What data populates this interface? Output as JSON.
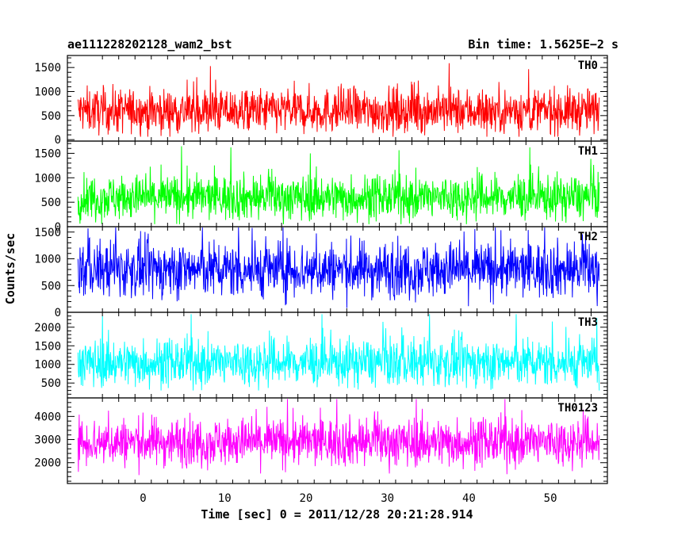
{
  "header": {
    "left_title": "ae111228202128_wam2_bst",
    "right_title": "Bin time: 1.5625E−2 s"
  },
  "chart_data": {
    "type": "line",
    "xlabel": "Time [sec] 0 = 2011/12/28 20:21:28.914",
    "ylabel": "Counts/sec",
    "xlim": [
      -9.3,
      57.0
    ],
    "x_range": [
      -8.0,
      56.0
    ],
    "x_ticks": [
      0,
      10,
      20,
      30,
      40,
      50
    ],
    "panels": [
      {
        "name": "TH0",
        "color": "#ff0000",
        "ylim": [
          -30,
          1750
        ],
        "yticks": [
          0,
          500,
          1000,
          1500
        ],
        "mean": 600,
        "spread": 230,
        "min": 60,
        "max": 1720
      },
      {
        "name": "TH1",
        "color": "#00ff00",
        "ylim": [
          0,
          1750
        ],
        "yticks": [
          0,
          500,
          1000,
          1500
        ],
        "mean": 600,
        "spread": 230,
        "min": 50,
        "max": 1700
      },
      {
        "name": "TH2",
        "color": "#0000ff",
        "ylim": [
          0,
          1600
        ],
        "yticks": [
          0,
          500,
          1000,
          1500
        ],
        "mean": 800,
        "spread": 260,
        "min": 30,
        "max": 1600
      },
      {
        "name": "TH3",
        "color": "#00ffff",
        "ylim": [
          100,
          2400
        ],
        "yticks": [
          500,
          1000,
          1500,
          2000
        ],
        "mean": 1050,
        "spread": 320,
        "min": 300,
        "max": 2350
      },
      {
        "name": "TH0123",
        "color": "#ff00ff",
        "ylim": [
          1100,
          4800
        ],
        "yticks": [
          2000,
          3000,
          4000
        ],
        "mean": 2900,
        "spread": 520,
        "min": 1100,
        "max": 4750
      }
    ]
  }
}
